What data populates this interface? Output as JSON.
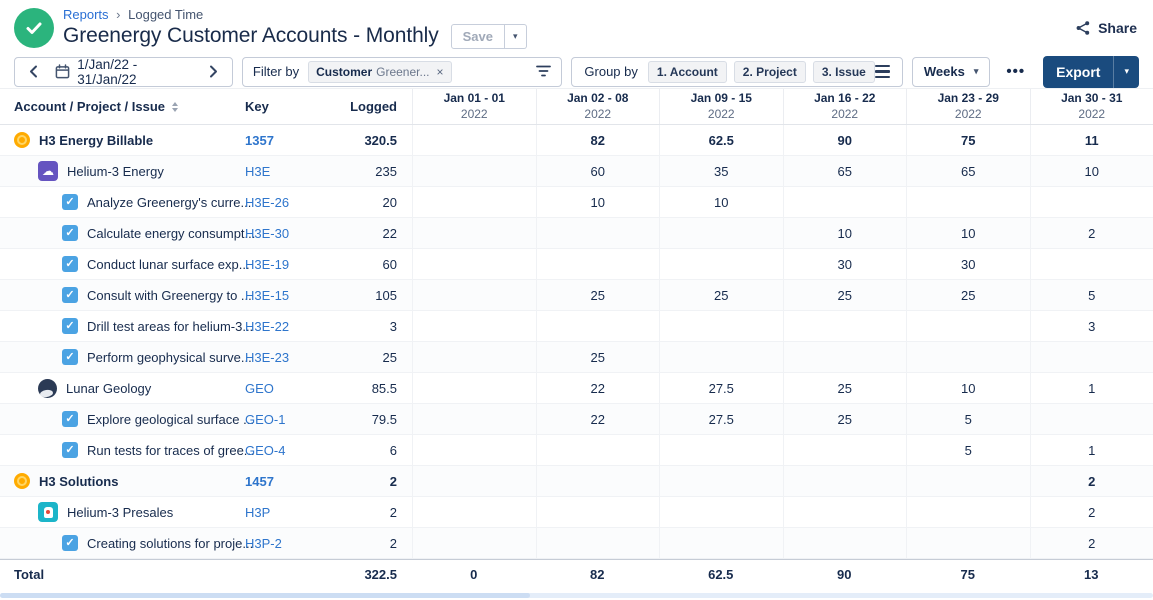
{
  "header": {
    "breadcrumb_reports": "Reports",
    "breadcrumb_separator": "›",
    "breadcrumb_logged_time": "Logged Time",
    "title": "Greenergy Customer Accounts - Monthly",
    "save_label": "Save",
    "share_label": "Share"
  },
  "toolbar": {
    "date_range": "1/Jan/22 - 31/Jan/22",
    "filter_by_label": "Filter by",
    "filter_tag_name": "Customer",
    "filter_tag_value": "Greener...",
    "filter_tag_remove": "×",
    "group_by_label": "Group by",
    "group_chips": [
      "1. Account",
      "2. Project",
      "3. Issue"
    ],
    "period_selector": "Weeks",
    "more_label": "•••",
    "export_label": "Export"
  },
  "table": {
    "headers": {
      "name": "Account / Project / Issue",
      "key": "Key",
      "logged": "Logged"
    },
    "weeks": [
      {
        "range": "Jan 01 - 01",
        "year": "2022"
      },
      {
        "range": "Jan 02 - 08",
        "year": "2022"
      },
      {
        "range": "Jan 09 - 15",
        "year": "2022"
      },
      {
        "range": "Jan 16 - 22",
        "year": "2022"
      },
      {
        "range": "Jan 23 - 29",
        "year": "2022"
      },
      {
        "range": "Jan 30 - 31",
        "year": "2022"
      }
    ],
    "rows": [
      {
        "level": "account",
        "icon": "coin-icon",
        "name": "H3 Energy Billable",
        "key": "1357",
        "logged": "320.5",
        "cells": [
          "",
          "82",
          "62.5",
          "90",
          "75",
          "11"
        ]
      },
      {
        "level": "project",
        "icon": "cloud-project-icon",
        "name": "Helium-3 Energy",
        "key": "H3E",
        "logged": "235",
        "cells": [
          "",
          "60",
          "35",
          "65",
          "65",
          "10"
        ]
      },
      {
        "level": "issue",
        "icon": "task-checkbox-icon",
        "name": "Analyze Greenergy's curre...",
        "key": "H3E-26",
        "logged": "20",
        "cells": [
          "",
          "10",
          "10",
          "",
          "",
          ""
        ]
      },
      {
        "level": "issue",
        "icon": "task-checkbox-icon",
        "name": "Calculate energy consumpt...",
        "key": "H3E-30",
        "logged": "22",
        "cells": [
          "",
          "",
          "",
          "10",
          "10",
          "2"
        ]
      },
      {
        "level": "issue",
        "icon": "task-checkbox-icon",
        "name": "Conduct lunar surface exp...",
        "key": "H3E-19",
        "logged": "60",
        "cells": [
          "",
          "",
          "",
          "30",
          "30",
          ""
        ]
      },
      {
        "level": "issue",
        "icon": "task-checkbox-icon",
        "name": "Consult with Greenergy to ...",
        "key": "H3E-15",
        "logged": "105",
        "cells": [
          "",
          "25",
          "25",
          "25",
          "25",
          "5"
        ]
      },
      {
        "level": "issue",
        "icon": "task-checkbox-icon",
        "name": "Drill test areas for helium-3...",
        "key": "H3E-22",
        "logged": "3",
        "cells": [
          "",
          "",
          "",
          "",
          "",
          "3"
        ]
      },
      {
        "level": "issue",
        "icon": "task-checkbox-icon",
        "name": "Perform geophysical surve...",
        "key": "H3E-23",
        "logged": "25",
        "cells": [
          "",
          "25",
          "",
          "",
          "",
          ""
        ]
      },
      {
        "level": "project",
        "icon": "moon-project-icon",
        "name": "Lunar Geology",
        "key": "GEO",
        "logged": "85.5",
        "cells": [
          "",
          "22",
          "27.5",
          "25",
          "10",
          "1"
        ]
      },
      {
        "level": "issue",
        "icon": "task-checkbox-icon",
        "name": "Explore geological surface ...",
        "key": "GEO-1",
        "logged": "79.5",
        "cells": [
          "",
          "22",
          "27.5",
          "25",
          "5",
          ""
        ]
      },
      {
        "level": "issue",
        "icon": "task-checkbox-icon",
        "name": "Run tests for traces of gree...",
        "key": "GEO-4",
        "logged": "6",
        "cells": [
          "",
          "",
          "",
          "",
          "5",
          "1"
        ]
      },
      {
        "level": "account",
        "icon": "coin-icon",
        "name": "H3 Solutions",
        "key": "1457",
        "logged": "2",
        "cells": [
          "",
          "",
          "",
          "",
          "",
          "2"
        ]
      },
      {
        "level": "project",
        "icon": "rocket-project-icon",
        "name": "Helium-3 Presales",
        "key": "H3P",
        "logged": "2",
        "cells": [
          "",
          "",
          "",
          "",
          "",
          "2"
        ]
      },
      {
        "level": "issue",
        "icon": "task-checkbox-icon",
        "name": "Creating solutions for proje...",
        "key": "H3P-2",
        "logged": "2",
        "cells": [
          "",
          "",
          "",
          "",
          "",
          "2"
        ]
      }
    ],
    "total": {
      "label": "Total",
      "logged": "322.5",
      "cells": [
        "0",
        "82",
        "62.5",
        "90",
        "75",
        "13"
      ]
    }
  },
  "colors": {
    "export_button": "#1A4B7E",
    "link_blue": "#2E75CC",
    "saved_green": "#2BB47D",
    "account_yellow": "#FFAB00",
    "project_purple": "#6554C0",
    "project_teal": "#1CB5C9",
    "task_blue": "#4BA3E3",
    "text_dark": "#172B4D"
  }
}
